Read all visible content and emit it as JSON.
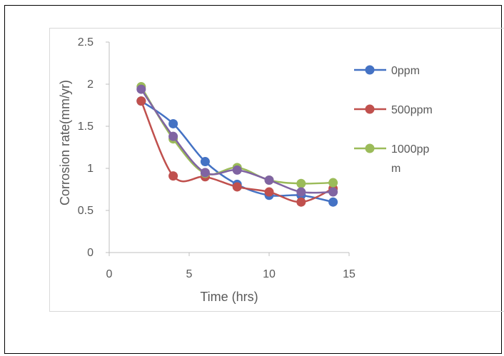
{
  "chart_data": {
    "type": "scatter",
    "title": "",
    "xlabel": "Time (hrs)",
    "ylabel": "Corrosion rate(mm/yr)",
    "xlim": [
      0,
      15
    ],
    "ylim": [
      0,
      2.5
    ],
    "x_ticks": [
      "0",
      "5",
      "10",
      "15"
    ],
    "y_ticks": [
      "0",
      "0.5",
      "1",
      "1.5",
      "2",
      "2.5"
    ],
    "x": [
      2,
      4,
      6,
      8,
      10,
      12,
      14
    ],
    "grid": false,
    "legend_position": "right",
    "series": [
      {
        "name": "0ppm",
        "color": "#4472c4",
        "values": [
          1.8,
          1.53,
          1.08,
          0.81,
          0.68,
          0.68,
          0.6
        ]
      },
      {
        "name": "500ppm",
        "color": "#c0504d",
        "values": [
          1.8,
          0.91,
          0.9,
          0.78,
          0.72,
          0.6,
          0.76
        ]
      },
      {
        "name": "1000ppm",
        "legend_lines": [
          "1000pp",
          "m"
        ],
        "color": "#9bbb59",
        "values": [
          1.97,
          1.35,
          0.94,
          1.01,
          0.86,
          0.82,
          0.83
        ]
      },
      {
        "name": "",
        "color": "#8064a2",
        "values": [
          1.94,
          1.38,
          0.95,
          0.98,
          0.86,
          0.72,
          0.72
        ]
      }
    ]
  }
}
